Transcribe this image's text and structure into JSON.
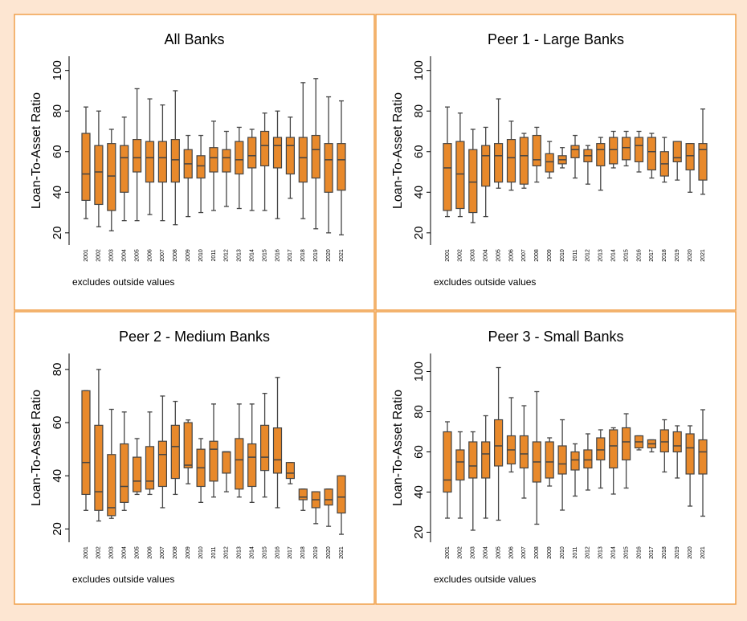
{
  "chart_data": [
    {
      "type": "box",
      "title": "All Banks",
      "ylabel": "Loan-To-Asset Ratio",
      "note": "excludes outside values",
      "color": "#e8892b",
      "categories": [
        "2001",
        "2002",
        "2003",
        "2004",
        "2005",
        "2006",
        "2007",
        "2008",
        "2009",
        "2010",
        "2011",
        "2012",
        "2013",
        "2014",
        "2015",
        "2016",
        "2017",
        "2018",
        "2019",
        "2020",
        "2021"
      ],
      "low": [
        27,
        23,
        21,
        26,
        26,
        29,
        26,
        24,
        28,
        30,
        31,
        33,
        32,
        31,
        31,
        27,
        37,
        27,
        22,
        20,
        19
      ],
      "q1": [
        36,
        34,
        31,
        40,
        50,
        45,
        45,
        45,
        47,
        47,
        50,
        50,
        49,
        52,
        53,
        52,
        49,
        45,
        47,
        40,
        41
      ],
      "median": [
        49,
        50,
        48,
        57,
        57,
        57,
        57,
        56,
        54,
        53,
        57,
        57,
        56,
        58,
        63,
        63,
        63,
        57,
        61,
        56,
        56
      ],
      "q3": [
        69,
        63,
        64,
        63,
        66,
        65,
        65,
        66,
        61,
        58,
        62,
        61,
        65,
        67,
        70,
        67,
        67,
        67,
        68,
        64,
        64
      ],
      "high": [
        82,
        80,
        71,
        77,
        91,
        86,
        83,
        90,
        68,
        68,
        75,
        70,
        72,
        71,
        79,
        80,
        77,
        94,
        96,
        87,
        85
      ],
      "ylim": [
        14,
        107
      ],
      "yticks": [
        20,
        40,
        60,
        80,
        100
      ]
    },
    {
      "type": "box",
      "title": "Peer 1 - Large Banks",
      "ylabel": "Loan-To-Asset Ratio",
      "note": "excludes outside values",
      "color": "#e8892b",
      "categories": [
        "2001",
        "2002",
        "2003",
        "2004",
        "2005",
        "2006",
        "2007",
        "2008",
        "2009",
        "2010",
        "2011",
        "2012",
        "2013",
        "2014",
        "2015",
        "2016",
        "2017",
        "2018",
        "2019",
        "2020",
        "2021"
      ],
      "low": [
        28,
        28,
        25,
        28,
        42,
        41,
        42,
        45,
        47,
        52,
        47,
        44,
        41,
        52,
        53,
        50,
        47,
        45,
        46,
        40,
        39
      ],
      "q1": [
        31,
        32,
        30,
        43,
        45,
        45,
        44,
        53,
        50,
        54,
        57,
        55,
        53,
        54,
        56,
        55,
        51,
        48,
        55,
        51,
        46
      ],
      "median": [
        52,
        49,
        45,
        58,
        58,
        57,
        58,
        56,
        55,
        56,
        61,
        58,
        61,
        61,
        62,
        63,
        60,
        54,
        57,
        58,
        61
      ],
      "q3": [
        64,
        65,
        61,
        63,
        64,
        66,
        67,
        68,
        59,
        58,
        63,
        61,
        64,
        67,
        67,
        67,
        67,
        60,
        65,
        64,
        64
      ],
      "high": [
        82,
        79,
        71,
        72,
        86,
        75,
        69,
        72,
        65,
        62,
        68,
        63,
        67,
        70,
        70,
        70,
        69,
        67,
        65,
        64,
        81
      ],
      "ylim": [
        14,
        107
      ],
      "yticks": [
        20,
        40,
        60,
        80,
        100
      ]
    },
    {
      "type": "box",
      "title": "Peer 2 - Medium Banks",
      "ylabel": "Loan-To-Asset Ratio",
      "note": "excludes outside values",
      "color": "#e8892b",
      "categories": [
        "2001",
        "2002",
        "2003",
        "2004",
        "2005",
        "2006",
        "2007",
        "2008",
        "2009",
        "2010",
        "2011",
        "2012",
        "2013",
        "2014",
        "2015",
        "2016",
        "2017",
        "2018",
        "2019",
        "2020",
        "2021"
      ],
      "low": [
        27,
        23,
        24,
        27,
        33,
        33,
        28,
        33,
        37,
        30,
        32,
        34,
        32,
        30,
        32,
        28,
        37,
        27,
        22,
        21,
        18
      ],
      "q1": [
        33,
        27,
        25,
        30,
        34,
        35,
        36,
        39,
        43,
        36,
        38,
        41,
        35,
        36,
        42,
        41,
        39,
        31,
        28,
        29,
        26
      ],
      "median": [
        45,
        34,
        28,
        36,
        38,
        38,
        48,
        51,
        44,
        43,
        50,
        49,
        46,
        47,
        47,
        46,
        41,
        32,
        31,
        31,
        32
      ],
      "q3": [
        72,
        59,
        48,
        52,
        47,
        51,
        53,
        59,
        60,
        50,
        53,
        49,
        54,
        52,
        59,
        58,
        45,
        35,
        34,
        35,
        40
      ],
      "high": [
        72,
        80,
        65,
        64,
        54,
        64,
        70,
        68,
        61,
        54,
        67,
        49,
        67,
        67,
        71,
        77,
        45,
        35,
        34,
        35,
        40
      ],
      "ylim": [
        15,
        86
      ],
      "yticks": [
        20,
        40,
        60,
        80
      ]
    },
    {
      "type": "box",
      "title": "Peer 3 - Small Banks",
      "ylabel": "Loan-To-Asset Ratio",
      "note": "excludes outside values",
      "color": "#e8892b",
      "categories": [
        "2001",
        "2002",
        "2003",
        "2004",
        "2005",
        "2006",
        "2007",
        "2008",
        "2009",
        "2010",
        "2011",
        "2012",
        "2013",
        "2014",
        "2015",
        "2016",
        "2017",
        "2018",
        "2019",
        "2020",
        "2021"
      ],
      "low": [
        27,
        27,
        21,
        27,
        26,
        50,
        37,
        24,
        43,
        31,
        38,
        41,
        42,
        39,
        42,
        61,
        60,
        50,
        47,
        33,
        28
      ],
      "q1": [
        40,
        46,
        47,
        47,
        53,
        54,
        52,
        45,
        47,
        49,
        51,
        52,
        56,
        52,
        56,
        62,
        62,
        60,
        60,
        49,
        49
      ],
      "median": [
        46,
        55,
        53,
        59,
        63,
        61,
        59,
        55,
        55,
        54,
        56,
        56,
        61,
        63,
        65,
        65,
        64,
        65,
        63,
        62,
        60
      ],
      "q3": [
        70,
        61,
        65,
        65,
        76,
        68,
        68,
        65,
        65,
        63,
        60,
        61,
        67,
        71,
        72,
        68,
        66,
        71,
        70,
        69,
        66
      ],
      "high": [
        75,
        70,
        70,
        78,
        102,
        87,
        83,
        90,
        67,
        76,
        64,
        69,
        71,
        72,
        79,
        68,
        66,
        76,
        73,
        73,
        81
      ],
      "ylim": [
        15,
        109
      ],
      "yticks": [
        20,
        40,
        60,
        80,
        100
      ]
    }
  ]
}
